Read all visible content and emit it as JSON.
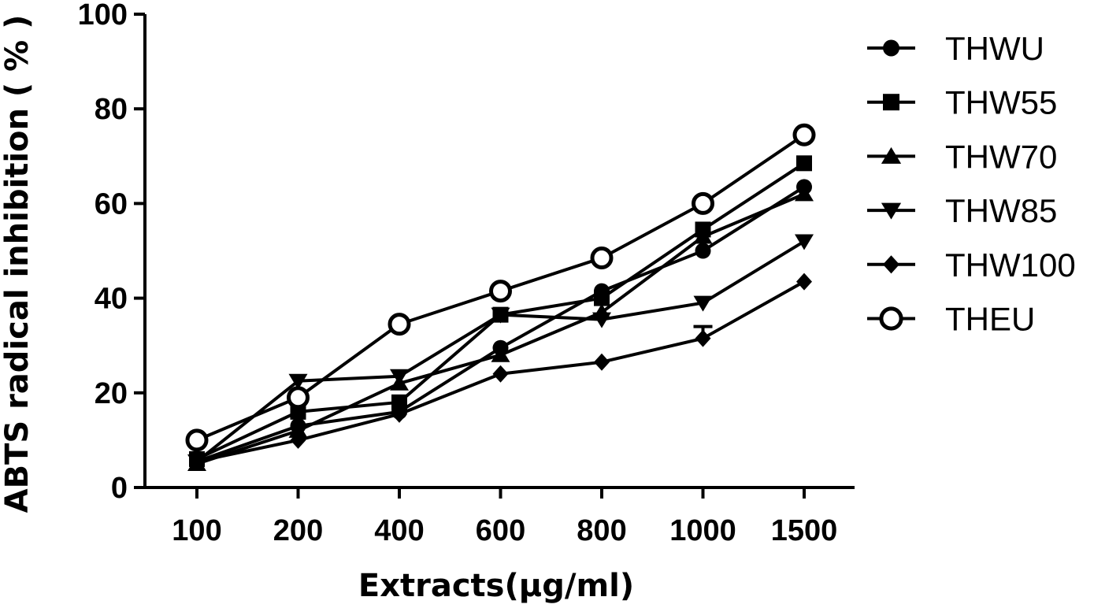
{
  "chart_data": {
    "type": "line",
    "title": "",
    "xlabel": "Extracts(μg/ml)",
    "ylabel": "ABTS radical inhibition ( % )",
    "categories": [
      "100",
      "200",
      "400",
      "600",
      "800",
      "1000",
      "1500"
    ],
    "yticks": [
      "0",
      "20",
      "40",
      "60",
      "80",
      "100"
    ],
    "ylim": [
      0,
      100
    ],
    "grid": false,
    "legend_position": "right",
    "series": [
      {
        "name": "THWU",
        "marker": "circle",
        "values": [
          5.5,
          13.0,
          16.0,
          29.5,
          41.5,
          50.0,
          63.5
        ]
      },
      {
        "name": "THW55",
        "marker": "square",
        "values": [
          6.0,
          16.0,
          18.0,
          36.5,
          40.0,
          54.5,
          68.5
        ]
      },
      {
        "name": "THW70",
        "marker": "triangle-up",
        "values": [
          5.0,
          12.0,
          22.0,
          28.0,
          37.0,
          53.0,
          62.0
        ]
      },
      {
        "name": "THW85",
        "marker": "triangle-down",
        "values": [
          5.5,
          22.5,
          23.5,
          36.5,
          35.5,
          39.0,
          52.0
        ]
      },
      {
        "name": "THW100",
        "marker": "diamond",
        "values": [
          5.5,
          10.0,
          15.5,
          24.0,
          26.5,
          31.5,
          43.5
        ]
      },
      {
        "name": "THEU",
        "marker": "open-circle",
        "values": [
          10.0,
          19.0,
          34.5,
          41.5,
          48.5,
          60.0,
          74.5
        ]
      }
    ],
    "error_caps": [
      {
        "series": "THW100",
        "category": "1000",
        "value": 34.0
      }
    ],
    "colors": {
      "line": "#000000",
      "background": "#ffffff"
    }
  }
}
